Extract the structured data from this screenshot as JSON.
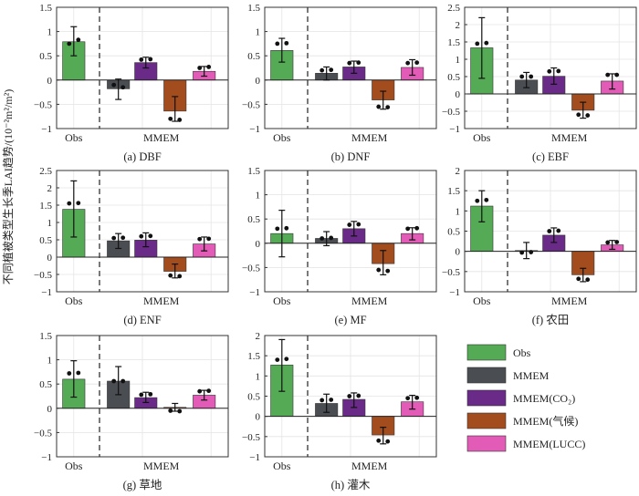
{
  "figure": {
    "ylabel": "不同植被类型生长季LAI趋势/(10⁻²m²/m²)"
  },
  "legend": [
    {
      "label": "Obs",
      "color": "#55aa55"
    },
    {
      "label": "MMEM",
      "color": "#4a4d52"
    },
    {
      "label": "MMEM(CO₂)",
      "color": "#6a2a87"
    },
    {
      "label": "MMEM(气候)",
      "color": "#a34d1e"
    },
    {
      "label": "MMEM(LUCC)",
      "color": "#e25cb7"
    }
  ],
  "chart_data": [
    {
      "type": "bar",
      "caption": "(a) DBF",
      "xticks": [
        "Obs",
        "MMEM"
      ],
      "ylim": [
        -1,
        1.5
      ],
      "yticks": [
        -1,
        -0.5,
        0,
        0.5,
        1,
        1.5
      ],
      "grid": true,
      "categories": [
        "Obs",
        "MMEM",
        "MMEM(CO₂)",
        "MMEM(气候)",
        "MMEM(LUCC)"
      ],
      "values": [
        0.79,
        -0.18,
        0.36,
        -0.64,
        0.18
      ],
      "error_low": [
        0.5,
        -0.4,
        0.25,
        -0.85,
        0.08
      ],
      "error_high": [
        1.1,
        0.02,
        0.47,
        -0.34,
        0.28
      ],
      "dots": [
        [
          0.75,
          0.83
        ],
        [
          -0.1,
          -0.15
        ],
        [
          0.42,
          0.43
        ],
        [
          -0.8,
          -0.82
        ],
        [
          0.25,
          0.27
        ]
      ]
    },
    {
      "type": "bar",
      "caption": "(b) DNF",
      "xticks": [
        "Obs",
        "MMEM"
      ],
      "ylim": [
        -1,
        1.5
      ],
      "yticks": [
        -1,
        -0.5,
        0,
        0.5,
        1,
        1.5
      ],
      "grid": true,
      "categories": [
        "Obs",
        "MMEM",
        "MMEM(CO₂)",
        "MMEM(气候)",
        "MMEM(LUCC)"
      ],
      "values": [
        0.61,
        0.14,
        0.27,
        -0.41,
        0.26
      ],
      "error_low": [
        0.37,
        0.0,
        0.14,
        -0.6,
        0.1
      ],
      "error_high": [
        0.86,
        0.27,
        0.39,
        -0.23,
        0.42
      ],
      "dots": [
        [
          0.75,
          0.76
        ],
        [
          0.2,
          0.21
        ],
        [
          0.35,
          0.36
        ],
        [
          -0.55,
          -0.56
        ],
        [
          0.35,
          0.36
        ]
      ]
    },
    {
      "type": "bar",
      "caption": "(c) EBF",
      "xticks": [
        "Obs",
        "MMEM"
      ],
      "ylim": [
        -1,
        2.5
      ],
      "yticks": [
        -1,
        -0.5,
        0,
        0.5,
        1,
        1.5,
        2,
        2.5
      ],
      "grid": true,
      "categories": [
        "Obs",
        "MMEM",
        "MMEM(CO₂)",
        "MMEM(气候)",
        "MMEM(LUCC)"
      ],
      "values": [
        1.33,
        0.4,
        0.51,
        -0.47,
        0.37
      ],
      "error_low": [
        0.45,
        0.18,
        0.28,
        -0.7,
        0.14
      ],
      "error_high": [
        2.2,
        0.62,
        0.75,
        -0.24,
        0.58
      ],
      "dots": [
        [
          1.45,
          1.47
        ],
        [
          0.5,
          0.5
        ],
        [
          0.65,
          0.66
        ],
        [
          -0.6,
          -0.62
        ],
        [
          0.55,
          0.55
        ]
      ]
    },
    {
      "type": "bar",
      "caption": "(d) ENF",
      "xticks": [
        "Obs",
        "MMEM"
      ],
      "ylim": [
        -1,
        2.5
      ],
      "yticks": [
        -1,
        -0.5,
        0,
        0.5,
        1,
        1.5,
        2,
        2.5
      ],
      "grid": true,
      "categories": [
        "Obs",
        "MMEM",
        "MMEM(CO₂)",
        "MMEM(气候)",
        "MMEM(LUCC)"
      ],
      "values": [
        1.38,
        0.47,
        0.49,
        -0.41,
        0.38
      ],
      "error_low": [
        0.58,
        0.25,
        0.3,
        -0.6,
        0.18
      ],
      "error_high": [
        2.2,
        0.68,
        0.7,
        -0.2,
        0.58
      ],
      "dots": [
        [
          1.55,
          1.56
        ],
        [
          0.55,
          0.56
        ],
        [
          0.6,
          0.61
        ],
        [
          -0.53,
          -0.55
        ],
        [
          0.52,
          0.53
        ]
      ]
    },
    {
      "type": "bar",
      "caption": "(e) MF",
      "xticks": [
        "Obs",
        "MMEM"
      ],
      "ylim": [
        -1,
        1.5
      ],
      "yticks": [
        -1,
        -0.5,
        0,
        0.5,
        1,
        1.5
      ],
      "grid": true,
      "categories": [
        "Obs",
        "MMEM",
        "MMEM(CO₂)",
        "MMEM(气候)",
        "MMEM(LUCC)"
      ],
      "values": [
        0.2,
        0.1,
        0.3,
        -0.42,
        0.2
      ],
      "error_low": [
        -0.28,
        -0.05,
        0.15,
        -0.65,
        0.07
      ],
      "error_high": [
        0.68,
        0.24,
        0.45,
        -0.15,
        0.32
      ],
      "dots": [
        [
          0.3,
          0.31
        ],
        [
          0.1,
          0.11
        ],
        [
          0.38,
          0.39
        ],
        [
          -0.55,
          -0.57
        ],
        [
          0.3,
          0.31
        ]
      ]
    },
    {
      "type": "bar",
      "caption": "(f) 农田",
      "xticks": [
        "Obs",
        "MMEM"
      ],
      "ylim": [
        -1,
        2
      ],
      "yticks": [
        -1,
        -0.5,
        0,
        0.5,
        1,
        1.5,
        2
      ],
      "grid": true,
      "categories": [
        "Obs",
        "MMEM",
        "MMEM(CO₂)",
        "MMEM(气候)",
        "MMEM(LUCC)"
      ],
      "values": [
        1.12,
        0.02,
        0.4,
        -0.58,
        0.16
      ],
      "error_low": [
        0.73,
        -0.18,
        0.22,
        -0.75,
        0.05
      ],
      "error_high": [
        1.5,
        0.22,
        0.58,
        -0.42,
        0.27
      ],
      "dots": [
        [
          1.25,
          1.27
        ],
        [
          -0.03,
          -0.02
        ],
        [
          0.5,
          0.51
        ],
        [
          -0.68,
          -0.7
        ],
        [
          0.22,
          0.23
        ]
      ]
    },
    {
      "type": "bar",
      "caption": "(g) 草地",
      "xticks": [
        "Obs",
        "MMEM"
      ],
      "ylim": [
        -1,
        1.5
      ],
      "yticks": [
        -1,
        -0.5,
        0,
        0.5,
        1,
        1.5
      ],
      "grid": true,
      "categories": [
        "Obs",
        "MMEM",
        "MMEM(CO₂)",
        "MMEM(气候)",
        "MMEM(LUCC)"
      ],
      "values": [
        0.6,
        0.56,
        0.22,
        0.02,
        0.27
      ],
      "error_low": [
        0.23,
        0.28,
        0.12,
        -0.06,
        0.17
      ],
      "error_high": [
        0.98,
        0.86,
        0.33,
        0.1,
        0.37
      ],
      "dots": [
        [
          0.72,
          0.73
        ],
        [
          0.56,
          0.56
        ],
        [
          0.28,
          0.29
        ],
        [
          -0.05,
          -0.06
        ],
        [
          0.35,
          0.36
        ]
      ]
    },
    {
      "type": "bar",
      "caption": "(h) 灌木",
      "xticks": [
        "Obs",
        "MMEM"
      ],
      "ylim": [
        -1,
        2
      ],
      "yticks": [
        -1,
        -0.5,
        0,
        0.5,
        1,
        1.5,
        2
      ],
      "grid": true,
      "categories": [
        "Obs",
        "MMEM",
        "MMEM(CO₂)",
        "MMEM(气候)",
        "MMEM(LUCC)"
      ],
      "values": [
        1.27,
        0.32,
        0.42,
        -0.46,
        0.36
      ],
      "error_low": [
        0.62,
        0.1,
        0.22,
        -0.68,
        0.18
      ],
      "error_high": [
        1.9,
        0.55,
        0.58,
        -0.27,
        0.52
      ],
      "dots": [
        [
          1.4,
          1.42
        ],
        [
          0.4,
          0.41
        ],
        [
          0.5,
          0.51
        ],
        [
          -0.6,
          -0.62
        ],
        [
          0.45,
          0.46
        ]
      ]
    }
  ]
}
